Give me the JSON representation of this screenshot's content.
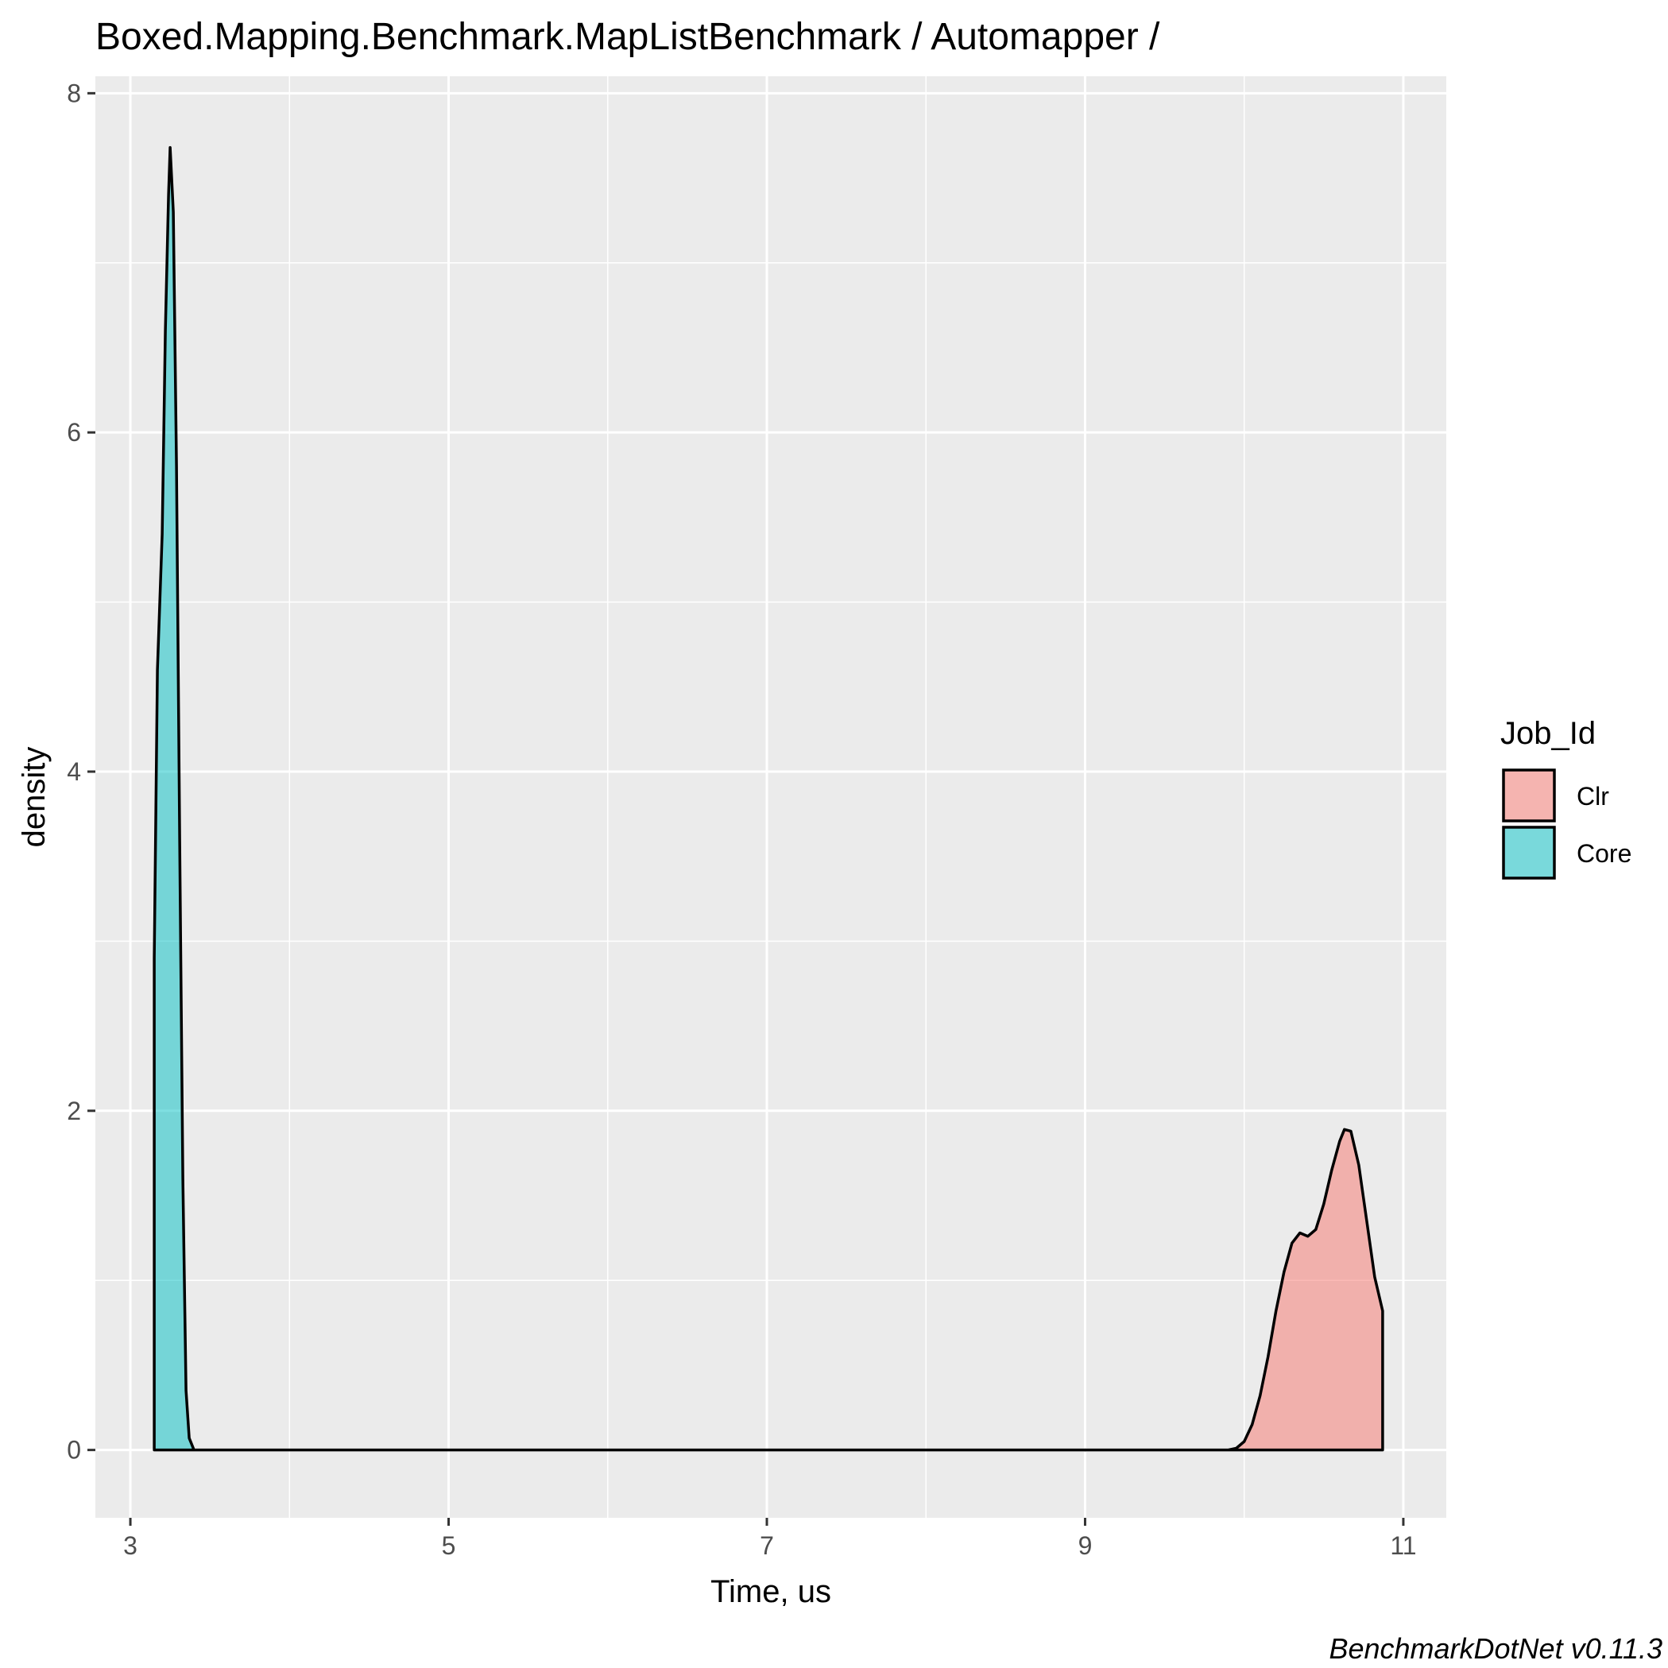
{
  "chart_data": {
    "type": "area",
    "subtype": "density",
    "title": "Boxed.Mapping.Benchmark.MapListBenchmark / Automapper /",
    "xlabel": "Time, us",
    "ylabel": "density",
    "caption": "BenchmarkDotNet v0.11.3",
    "xlim": [
      2.78,
      11.27
    ],
    "ylim": [
      -0.4,
      8.1
    ],
    "x_ticks": [
      3,
      5,
      7,
      9,
      11
    ],
    "x_tick_labels": [
      "3",
      "5",
      "7",
      "9",
      "11"
    ],
    "y_ticks": [
      0,
      2,
      4,
      6,
      8
    ],
    "y_tick_labels": [
      "0",
      "2",
      "4",
      "6",
      "8"
    ],
    "grid": true,
    "legend": {
      "title": "Job_Id",
      "position": "right",
      "entries": [
        "Clr",
        "Core"
      ]
    },
    "series": [
      {
        "name": "Clr",
        "color": "#f8766d",
        "points": [
          [
            9.0,
            0.0
          ],
          [
            9.5,
            0.0
          ],
          [
            9.9,
            0.0
          ],
          [
            9.95,
            0.01
          ],
          [
            10.0,
            0.05
          ],
          [
            10.05,
            0.15
          ],
          [
            10.1,
            0.32
          ],
          [
            10.15,
            0.55
          ],
          [
            10.2,
            0.82
          ],
          [
            10.25,
            1.05
          ],
          [
            10.3,
            1.22
          ],
          [
            10.35,
            1.28
          ],
          [
            10.4,
            1.26
          ],
          [
            10.45,
            1.3
          ],
          [
            10.5,
            1.45
          ],
          [
            10.55,
            1.65
          ],
          [
            10.6,
            1.82
          ],
          [
            10.63,
            1.89
          ],
          [
            10.67,
            1.88
          ],
          [
            10.72,
            1.68
          ],
          [
            10.77,
            1.35
          ],
          [
            10.82,
            1.02
          ],
          [
            10.87,
            0.82
          ],
          [
            10.87,
            0.0
          ]
        ]
      },
      {
        "name": "Core",
        "color": "#00bfc4",
        "points": [
          [
            3.15,
            0.0
          ],
          [
            3.15,
            2.9
          ],
          [
            3.17,
            4.6
          ],
          [
            3.2,
            5.4
          ],
          [
            3.22,
            6.6
          ],
          [
            3.24,
            7.4
          ],
          [
            3.25,
            7.68
          ],
          [
            3.27,
            7.3
          ],
          [
            3.29,
            5.8
          ],
          [
            3.31,
            3.6
          ],
          [
            3.33,
            1.6
          ],
          [
            3.35,
            0.35
          ],
          [
            3.37,
            0.07
          ],
          [
            3.4,
            0.0
          ],
          [
            5.0,
            0.0
          ],
          [
            9.0,
            0.0
          ]
        ]
      }
    ]
  }
}
